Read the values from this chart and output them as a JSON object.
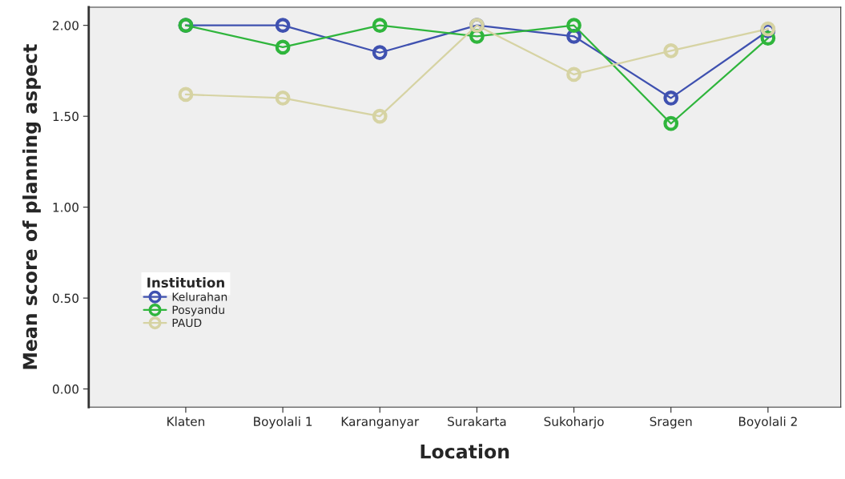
{
  "chart_data": {
    "type": "line",
    "xlabel": "Location",
    "ylabel": "Mean score of planning aspect",
    "legend_title": "Institution",
    "categories": [
      "Klaten",
      "Boyolali 1",
      "Karanganyar",
      "Surakarta",
      "Sukoharjo",
      "Sragen",
      "Boyolali 2"
    ],
    "series": [
      {
        "name": "Kelurahan",
        "color": "#3f51b0",
        "values": [
          2.0,
          2.0,
          1.85,
          2.0,
          1.94,
          1.6,
          1.97
        ]
      },
      {
        "name": "Posyandu",
        "color": "#2fb53c",
        "values": [
          2.0,
          1.88,
          2.0,
          1.94,
          2.0,
          1.46,
          1.93
        ]
      },
      {
        "name": "PAUD",
        "color": "#d6d3a3",
        "values": [
          1.62,
          1.6,
          1.5,
          2.0,
          1.73,
          1.86,
          1.98
        ]
      }
    ],
    "ylim": [
      -0.1,
      2.1
    ],
    "yticks": [
      {
        "value": 0,
        "label": "0.00"
      },
      {
        "value": 0.5,
        "label": "0.50"
      },
      {
        "value": 1,
        "label": "1.00"
      },
      {
        "value": 1.5,
        "label": "1.50"
      },
      {
        "value": 2,
        "label": "2.00"
      }
    ],
    "marker": "circle",
    "grid": false,
    "legend": "bottom left"
  }
}
